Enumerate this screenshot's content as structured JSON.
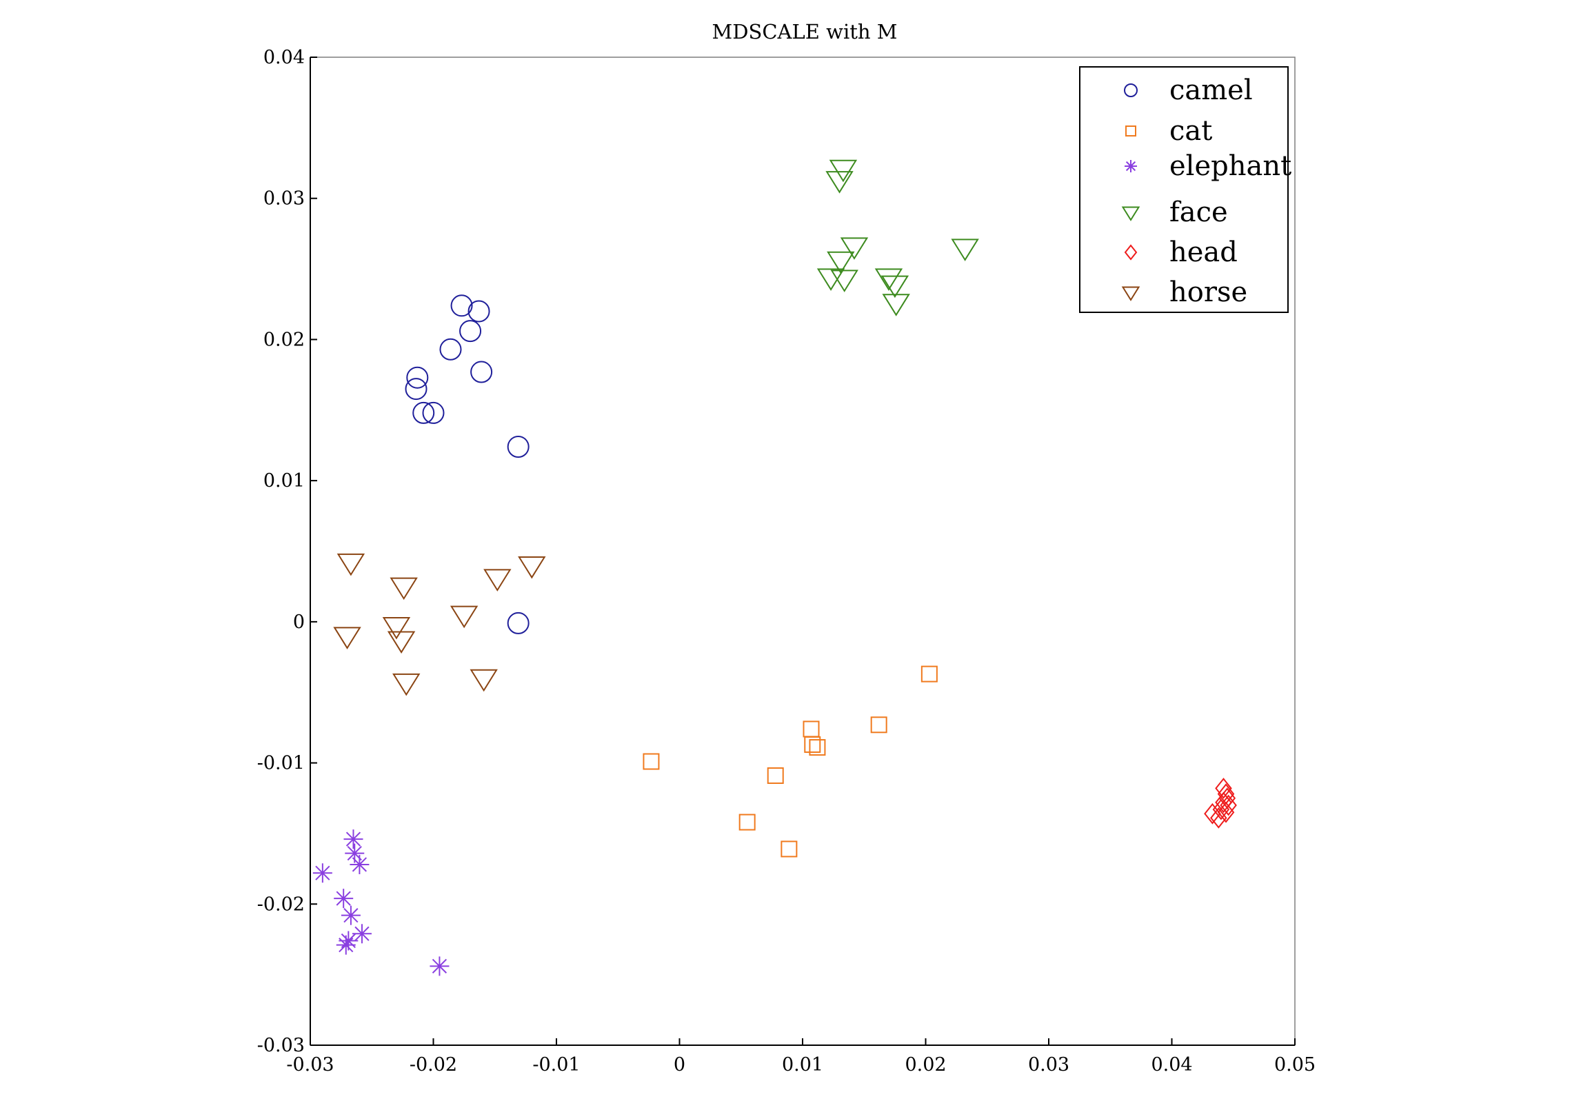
{
  "chart_data": {
    "type": "scatter",
    "title": "MDSCALE with M",
    "xlabel": "",
    "ylabel": "",
    "xlim": [
      -0.03,
      0.05
    ],
    "ylim": [
      -0.03,
      0.04
    ],
    "x_ticks": [
      -0.03,
      -0.02,
      -0.01,
      0,
      0.01,
      0.02,
      0.03,
      0.04,
      0.05
    ],
    "x_tick_labels": [
      "-0.03",
      "-0.02",
      "-0.01",
      "0",
      "0.01",
      "0.02",
      "0.03",
      "0.04",
      "0.05"
    ],
    "y_ticks": [
      -0.03,
      -0.02,
      -0.01,
      0,
      0.01,
      0.02,
      0.03,
      0.04
    ],
    "y_tick_labels": [
      "-0.03",
      "-0.02",
      "-0.01",
      "0",
      "0.01",
      "0.02",
      "0.03",
      "0.04"
    ],
    "grid": false,
    "legend_position": "top-right",
    "series": [
      {
        "name": "camel",
        "marker": "circle",
        "color": "#1f1f9a",
        "points": [
          [
            -0.0177,
            0.0224
          ],
          [
            -0.0163,
            0.022
          ],
          [
            -0.017,
            0.0206
          ],
          [
            -0.0186,
            0.0193
          ],
          [
            -0.0161,
            0.0177
          ],
          [
            -0.0213,
            0.0173
          ],
          [
            -0.0214,
            0.0165
          ],
          [
            -0.0208,
            0.0148
          ],
          [
            -0.02,
            0.0148
          ],
          [
            -0.0131,
            0.0124
          ],
          [
            -0.0131,
            -0.0001
          ]
        ]
      },
      {
        "name": "cat",
        "marker": "square",
        "color": "#f07a1e",
        "points": [
          [
            0.0203,
            -0.0037
          ],
          [
            0.0162,
            -0.0073
          ],
          [
            0.0107,
            -0.0076
          ],
          [
            0.0108,
            -0.0087
          ],
          [
            0.0112,
            -0.0089
          ],
          [
            -0.0023,
            -0.0099
          ],
          [
            0.0078,
            -0.0109
          ],
          [
            0.0055,
            -0.0142
          ],
          [
            0.0089,
            -0.0161
          ]
        ]
      },
      {
        "name": "elephant",
        "marker": "asterisk",
        "color": "#8a3fe0",
        "points": [
          [
            -0.0265,
            -0.0154
          ],
          [
            -0.0264,
            -0.0164
          ],
          [
            -0.026,
            -0.0172
          ],
          [
            -0.029,
            -0.0178
          ],
          [
            -0.0273,
            -0.0196
          ],
          [
            -0.0267,
            -0.0208
          ],
          [
            -0.0258,
            -0.0221
          ],
          [
            -0.0269,
            -0.0226
          ],
          [
            -0.0271,
            -0.0229
          ],
          [
            -0.0195,
            -0.0244
          ]
        ]
      },
      {
        "name": "face",
        "marker": "triangle-down",
        "color": "#3d8b1f",
        "points": [
          [
            0.0133,
            0.0321
          ],
          [
            0.013,
            0.0313
          ],
          [
            0.0142,
            0.0266
          ],
          [
            0.0232,
            0.0265
          ],
          [
            0.0131,
            0.0256
          ],
          [
            0.0123,
            0.0244
          ],
          [
            0.0134,
            0.0243
          ],
          [
            0.017,
            0.0244
          ],
          [
            0.0175,
            0.0239
          ],
          [
            0.0176,
            0.0226
          ]
        ]
      },
      {
        "name": "head",
        "marker": "diamond",
        "color": "#ee1c1c",
        "points": [
          [
            0.0442,
            -0.0118
          ],
          [
            0.0444,
            -0.0122
          ],
          [
            0.0445,
            -0.0125
          ],
          [
            0.0442,
            -0.0128
          ],
          [
            0.0446,
            -0.013
          ],
          [
            0.044,
            -0.0133
          ],
          [
            0.0444,
            -0.0135
          ],
          [
            0.0433,
            -0.0136
          ],
          [
            0.0438,
            -0.0139
          ]
        ]
      },
      {
        "name": "horse",
        "marker": "triangle-down",
        "color": "#8b4513",
        "points": [
          [
            -0.0267,
            0.0042
          ],
          [
            -0.012,
            0.004
          ],
          [
            -0.0224,
            0.0025
          ],
          [
            -0.0148,
            0.0031
          ],
          [
            -0.0175,
            0.0005
          ],
          [
            -0.023,
            -0.0003
          ],
          [
            -0.027,
            -0.001
          ],
          [
            -0.0226,
            -0.0013
          ],
          [
            -0.0222,
            -0.0043
          ],
          [
            -0.0159,
            -0.004
          ]
        ]
      }
    ]
  }
}
